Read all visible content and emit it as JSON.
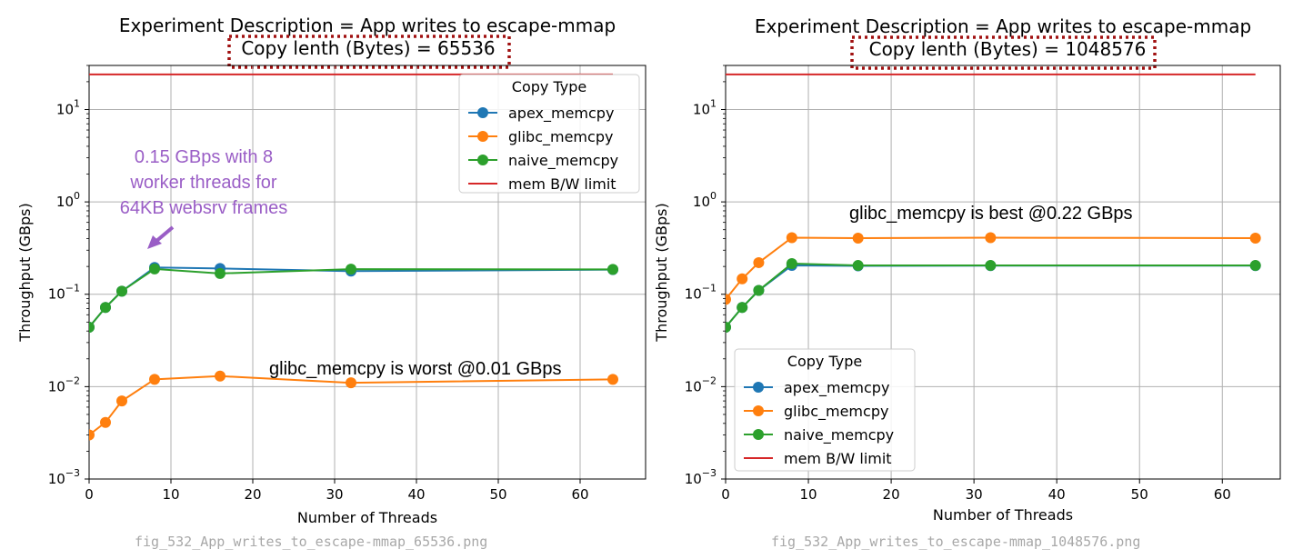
{
  "colors": {
    "apex": "#1f77b4",
    "glibc": "#ff7f0e",
    "naive": "#2ca02c",
    "limit": "#d62728",
    "grid": "#b0b0b0",
    "highlight_box": "#a01010",
    "purple_note": "#9a5ec6"
  },
  "chart_data": [
    {
      "type": "line",
      "title": "Experiment Description = App writes to escape-mmap",
      "subtitle": "Copy lenth (Bytes) =  65536",
      "xlabel": "Number of Threads",
      "ylabel": "Throughput (GBps)",
      "yscale": "log",
      "xlim": [
        0,
        68
      ],
      "ylim": [
        0.001,
        30
      ],
      "xticks": [
        "0",
        "10",
        "20",
        "30",
        "40",
        "50",
        "60"
      ],
      "yticks": [
        {
          "base": "10",
          "exp": "−3"
        },
        {
          "base": "10",
          "exp": "−2"
        },
        {
          "base": "10",
          "exp": "−1"
        },
        {
          "base": "10",
          "exp": "0"
        },
        {
          "base": "10",
          "exp": "1"
        }
      ],
      "grid": true,
      "legend": {
        "title": "Copy Type",
        "placement": "top-right",
        "entries": [
          "apex_memcpy",
          "glibc_memcpy",
          "naive_memcpy",
          "mem B/W limit"
        ]
      },
      "x": [
        0,
        2,
        4,
        8,
        16,
        32,
        64
      ],
      "series": [
        {
          "name": "apex_memcpy",
          "values": [
            0.044,
            0.072,
            0.108,
            0.195,
            0.19,
            0.178,
            0.185
          ]
        },
        {
          "name": "glibc_memcpy",
          "values": [
            0.003,
            0.0041,
            0.007,
            0.012,
            0.013,
            0.011,
            0.012
          ]
        },
        {
          "name": "naive_memcpy",
          "values": [
            0.044,
            0.072,
            0.108,
            0.188,
            0.168,
            0.187,
            0.186
          ]
        }
      ],
      "limit": {
        "name": "mem B/W limit",
        "value": 24,
        "x_range": [
          0,
          64
        ]
      },
      "annotations": {
        "worst": "glibc_memcpy is worst @0.01 GBps",
        "note_lines": [
          "0.15 GBps with 8",
          "worker threads for",
          "64KB websrv frames"
        ]
      },
      "filename": "fig_532_App_writes_to_escape-mmap_65536.png"
    },
    {
      "type": "line",
      "title": "Experiment Description = App writes to escape-mmap",
      "subtitle": "Copy lenth (Bytes) =  1048576",
      "xlabel": "Number of Threads",
      "ylabel": "Throughput (GBps)",
      "yscale": "log",
      "xlim": [
        0,
        67
      ],
      "ylim": [
        0.001,
        30
      ],
      "xticks": [
        "0",
        "10",
        "20",
        "30",
        "40",
        "50",
        "60"
      ],
      "yticks": [
        {
          "base": "10",
          "exp": "−3"
        },
        {
          "base": "10",
          "exp": "−2"
        },
        {
          "base": "10",
          "exp": "−1"
        },
        {
          "base": "10",
          "exp": "0"
        },
        {
          "base": "10",
          "exp": "1"
        }
      ],
      "grid": true,
      "legend": {
        "title": "Copy Type",
        "placement": "bottom-left",
        "entries": [
          "apex_memcpy",
          "glibc_memcpy",
          "naive_memcpy",
          "mem B/W limit"
        ]
      },
      "x": [
        0,
        2,
        4,
        8,
        16,
        32,
        64
      ],
      "series": [
        {
          "name": "apex_memcpy",
          "values": [
            0.044,
            0.072,
            0.11,
            0.205,
            0.203,
            0.204,
            0.204
          ]
        },
        {
          "name": "glibc_memcpy",
          "values": [
            0.088,
            0.147,
            0.22,
            0.41,
            0.405,
            0.41,
            0.405
          ]
        },
        {
          "name": "naive_memcpy",
          "values": [
            0.044,
            0.072,
            0.11,
            0.215,
            0.205,
            0.205,
            0.205
          ]
        }
      ],
      "limit": {
        "name": "mem B/W limit",
        "value": 24,
        "x_range": [
          0,
          64
        ]
      },
      "annotations": {
        "best": "glibc_memcpy is best @0.22 GBps"
      },
      "filename": "fig_532_App_writes_to_escape-mmap_1048576.png"
    }
  ]
}
